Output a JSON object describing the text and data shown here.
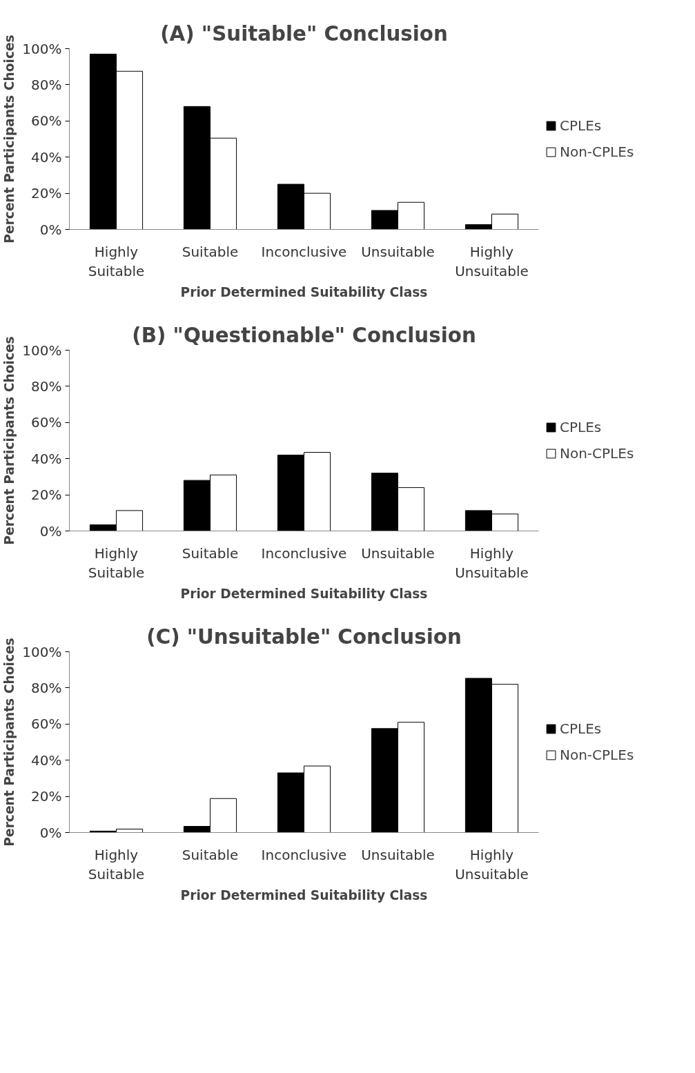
{
  "chart_data": [
    {
      "type": "bar",
      "title": "(A) \"Suitable\" Conclusion",
      "xlabel": "Prior Determined Suitability Class",
      "ylabel": "Percent Participants Choices",
      "categories": [
        "Highly Suitable",
        "Suitable",
        "Inconclusive",
        "Unsuitable",
        "Highly Unsuitable"
      ],
      "series": [
        {
          "name": "CPLEs",
          "color": "#000000",
          "values": [
            97,
            68,
            25,
            10.5,
            2.7
          ]
        },
        {
          "name": "Non-CPLEs",
          "color": "#ffffff",
          "values": [
            87.5,
            50.5,
            20,
            15,
            8.5
          ]
        }
      ],
      "ylim": [
        0,
        100
      ],
      "yticks": [
        {
          "value": 0,
          "label": "0%"
        },
        {
          "value": 20,
          "label": "20%"
        },
        {
          "value": 40,
          "label": "40%"
        },
        {
          "value": 60,
          "label": "60%"
        },
        {
          "value": 80,
          "label": "80%"
        },
        {
          "value": 100,
          "label": "100%"
        }
      ],
      "grid": false,
      "legend": "right"
    },
    {
      "type": "bar",
      "title": "(B) \"Questionable\" Conclusion",
      "xlabel": "Prior Determined Suitability Class",
      "ylabel": "Percent Participants Choices",
      "categories": [
        "Highly Suitable",
        "Suitable",
        "Inconclusive",
        "Unsuitable",
        "Highly Unsuitable"
      ],
      "series": [
        {
          "name": "CPLEs",
          "color": "#000000",
          "values": [
            3.4,
            28,
            42,
            32,
            11.3
          ]
        },
        {
          "name": "Non-CPLEs",
          "color": "#ffffff",
          "values": [
            11.3,
            31,
            43.5,
            24,
            9.4
          ]
        }
      ],
      "ylim": [
        0,
        100
      ],
      "yticks": [
        {
          "value": 0,
          "label": "0%"
        },
        {
          "value": 20,
          "label": "20%"
        },
        {
          "value": 40,
          "label": "40%"
        },
        {
          "value": 60,
          "label": "60%"
        },
        {
          "value": 80,
          "label": "80%"
        },
        {
          "value": 100,
          "label": "100%"
        }
      ],
      "grid": false,
      "legend": "right"
    },
    {
      "type": "bar",
      "title": "(C) \"Unsuitable\" Conclusion",
      "xlabel": "Prior Determined Suitability Class",
      "ylabel": "Percent Participants Choices",
      "categories": [
        "Highly Suitable",
        "Suitable",
        "Inconclusive",
        "Unsuitable",
        "Highly Unsuitable"
      ],
      "series": [
        {
          "name": "CPLEs",
          "color": "#000000",
          "values": [
            0.8,
            3.4,
            33,
            57.5,
            85.3
          ]
        },
        {
          "name": "Non-CPLEs",
          "color": "#ffffff",
          "values": [
            1.9,
            18.8,
            36.8,
            61,
            82
          ]
        }
      ],
      "ylim": [
        0,
        100
      ],
      "yticks": [
        {
          "value": 0,
          "label": "0%"
        },
        {
          "value": 20,
          "label": "20%"
        },
        {
          "value": 40,
          "label": "40%"
        },
        {
          "value": 60,
          "label": "60%"
        },
        {
          "value": 80,
          "label": "80%"
        },
        {
          "value": 100,
          "label": "100%"
        }
      ],
      "grid": false,
      "legend": "right"
    }
  ]
}
